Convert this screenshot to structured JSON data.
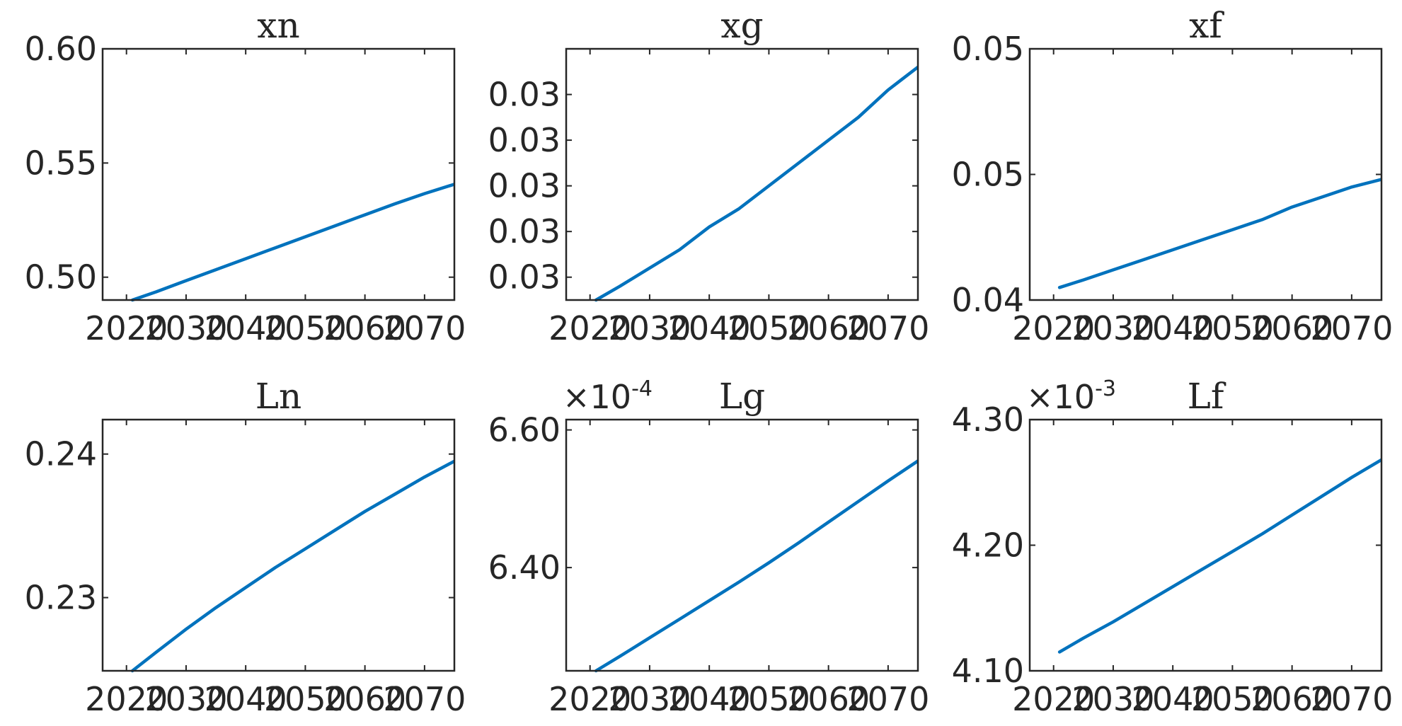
{
  "colors": {
    "series": "#0072bd",
    "axes": "#262626",
    "background": "#ffffff"
  },
  "chart_data": [
    {
      "type": "line",
      "title": "xn",
      "exponent": "",
      "x": [
        2021,
        2025,
        2030,
        2035,
        2040,
        2045,
        2050,
        2055,
        2060,
        2065,
        2070,
        2075
      ],
      "xlim": [
        2016,
        2075
      ],
      "xticks": [
        2020,
        2030,
        2040,
        2050,
        2060,
        2070
      ],
      "xticklabels": [
        "2020",
        "2030",
        "2040",
        "2050",
        "2060",
        "2070"
      ],
      "ylim": [
        0.49,
        0.6
      ],
      "yticks": [
        0.5,
        0.55,
        0.6
      ],
      "yticklabels": [
        "0.50",
        "0.55",
        "0.60"
      ],
      "series": [
        {
          "values": [
            0.49,
            0.4936,
            0.4985,
            0.5033,
            0.5081,
            0.5129,
            0.5177,
            0.5225,
            0.5273,
            0.5321,
            0.5366,
            0.5407
          ]
        }
      ]
    },
    {
      "type": "line",
      "title": "xg",
      "exponent": "",
      "x": [
        2021,
        2025,
        2030,
        2035,
        2040,
        2045,
        2050,
        2055,
        2060,
        2065,
        2070,
        2075
      ],
      "xlim": [
        2016,
        2075
      ],
      "xticks": [
        2020,
        2030,
        2040,
        2050,
        2060,
        2070
      ],
      "xticklabels": [
        "2020",
        "2030",
        "2040",
        "2050",
        "2060",
        "2070"
      ],
      "ylim": [
        0.0259,
        0.0314
      ],
      "yticks": [
        0.0264,
        0.0274,
        0.0284,
        0.0294,
        0.0304
      ],
      "yticklabels": [
        "0.03",
        "0.03",
        "0.03",
        "0.03",
        "0.03"
      ],
      "series": [
        {
          "values": [
            0.0259,
            0.0262,
            0.0266,
            0.027,
            0.0275,
            0.0279,
            0.0284,
            0.0289,
            0.0294,
            0.0299,
            0.0305,
            0.031
          ]
        }
      ]
    },
    {
      "type": "line",
      "title": "xf",
      "exponent": "",
      "x": [
        2021,
        2025,
        2030,
        2035,
        2040,
        2045,
        2050,
        2055,
        2060,
        2065,
        2070,
        2075
      ],
      "xlim": [
        2016,
        2075
      ],
      "xticks": [
        2020,
        2030,
        2040,
        2050,
        2060,
        2070
      ],
      "xticklabels": [
        "2020",
        "2030",
        "2040",
        "2050",
        "2060",
        "2070"
      ],
      "ylim": [
        0.04,
        0.05
      ],
      "yticks": [
        0.04,
        0.045,
        0.05
      ],
      "yticklabels": [
        "0.04",
        "0.05",
        "0.05"
      ],
      "series": [
        {
          "values": [
            0.0405,
            0.0408,
            0.0412,
            0.0416,
            0.042,
            0.0424,
            0.0428,
            0.0432,
            0.0437,
            0.0441,
            0.0445,
            0.0448
          ]
        }
      ]
    },
    {
      "type": "line",
      "title": "Ln",
      "exponent": "",
      "x": [
        2021,
        2025,
        2030,
        2035,
        2040,
        2045,
        2050,
        2055,
        2060,
        2065,
        2070,
        2075
      ],
      "xlim": [
        2016,
        2075
      ],
      "xticks": [
        2020,
        2030,
        2040,
        2050,
        2060,
        2070
      ],
      "xticklabels": [
        "2020",
        "2030",
        "2040",
        "2050",
        "2060",
        "2070"
      ],
      "ylim": [
        0.2249,
        0.2424
      ],
      "yticks": [
        0.23,
        0.24
      ],
      "yticklabels": [
        "0.23",
        "0.24"
      ],
      "series": [
        {
          "values": [
            0.2249,
            0.2262,
            0.2278,
            0.2293,
            0.2307,
            0.2321,
            0.2334,
            0.2347,
            0.236,
            0.2372,
            0.2384,
            0.2395
          ]
        }
      ]
    },
    {
      "type": "line",
      "title": "Lg",
      "exponent": "-4",
      "x": [
        2021,
        2025,
        2030,
        2035,
        2040,
        2045,
        2050,
        2055,
        2060,
        2065,
        2070,
        2075
      ],
      "xlim": [
        2016,
        2075
      ],
      "xticks": [
        2020,
        2030,
        2040,
        2050,
        2060,
        2070
      ],
      "xticklabels": [
        "2020",
        "2030",
        "2040",
        "2050",
        "2060",
        "2070"
      ],
      "ylim": [
        6.25,
        6.615
      ],
      "yticks": [
        6.4,
        6.6
      ],
      "yticklabels": [
        "6.40",
        "6.60"
      ],
      "series": [
        {
          "values": [
            6.25,
            6.271,
            6.298,
            6.325,
            6.352,
            6.379,
            6.407,
            6.436,
            6.466,
            6.496,
            6.526,
            6.555
          ]
        }
      ]
    },
    {
      "type": "line",
      "title": "Lf",
      "exponent": "-3",
      "x": [
        2021,
        2025,
        2030,
        2035,
        2040,
        2045,
        2050,
        2055,
        2060,
        2065,
        2070,
        2075
      ],
      "xlim": [
        2016,
        2075
      ],
      "xticks": [
        2020,
        2030,
        2040,
        2050,
        2060,
        2070
      ],
      "xticklabels": [
        "2020",
        "2030",
        "2040",
        "2050",
        "2060",
        "2070"
      ],
      "ylim": [
        4.1,
        4.3
      ],
      "yticks": [
        4.1,
        4.2,
        4.3
      ],
      "yticklabels": [
        "4.10",
        "4.20",
        "4.30"
      ],
      "series": [
        {
          "values": [
            4.115,
            4.126,
            4.139,
            4.153,
            4.167,
            4.181,
            4.195,
            4.209,
            4.224,
            4.239,
            4.254,
            4.268
          ]
        }
      ]
    }
  ]
}
